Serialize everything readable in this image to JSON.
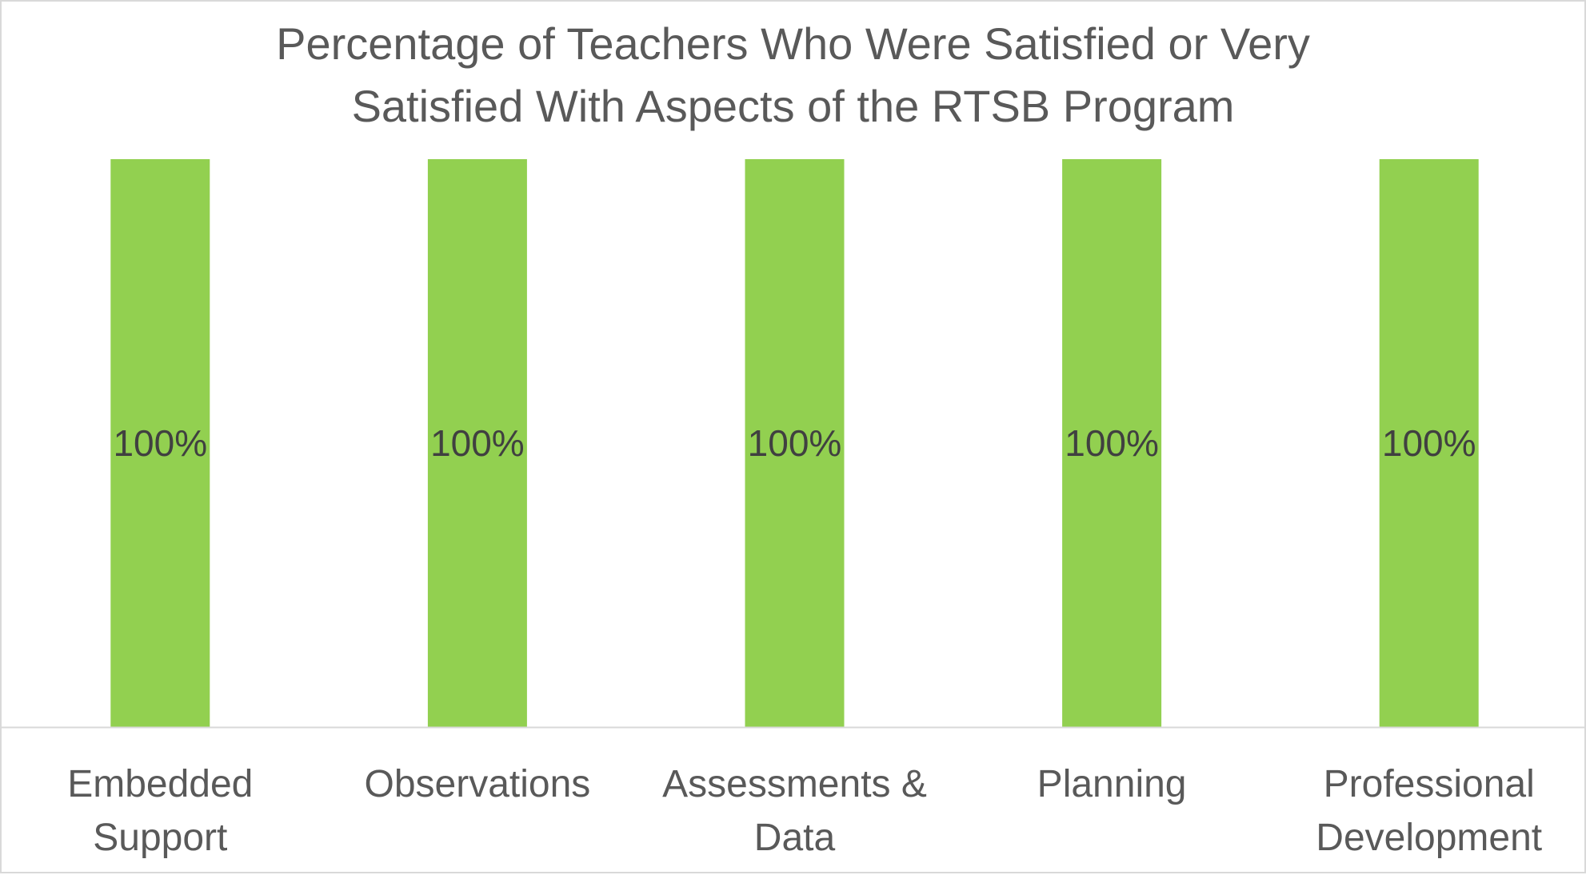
{
  "chart_data": {
    "type": "bar",
    "title_lines": [
      "Percentage of Teachers Who Were Satisfied or Very",
      "Satisfied With Aspects of the RTSB Program"
    ],
    "categories": [
      [
        "Embedded",
        "Support"
      ],
      [
        "Observations"
      ],
      [
        "Assessments &",
        "Data"
      ],
      [
        "Planning"
      ],
      [
        "Professional",
        "Development"
      ]
    ],
    "values": [
      100,
      100,
      100,
      100,
      100
    ],
    "data_labels": [
      "100%",
      "100%",
      "100%",
      "100%",
      "100%"
    ],
    "ylim": [
      0,
      100
    ],
    "grid": false,
    "legend": "none",
    "bar_color": "#92d050",
    "axis_color": "#d9d9d9",
    "text_color": "#595959"
  }
}
